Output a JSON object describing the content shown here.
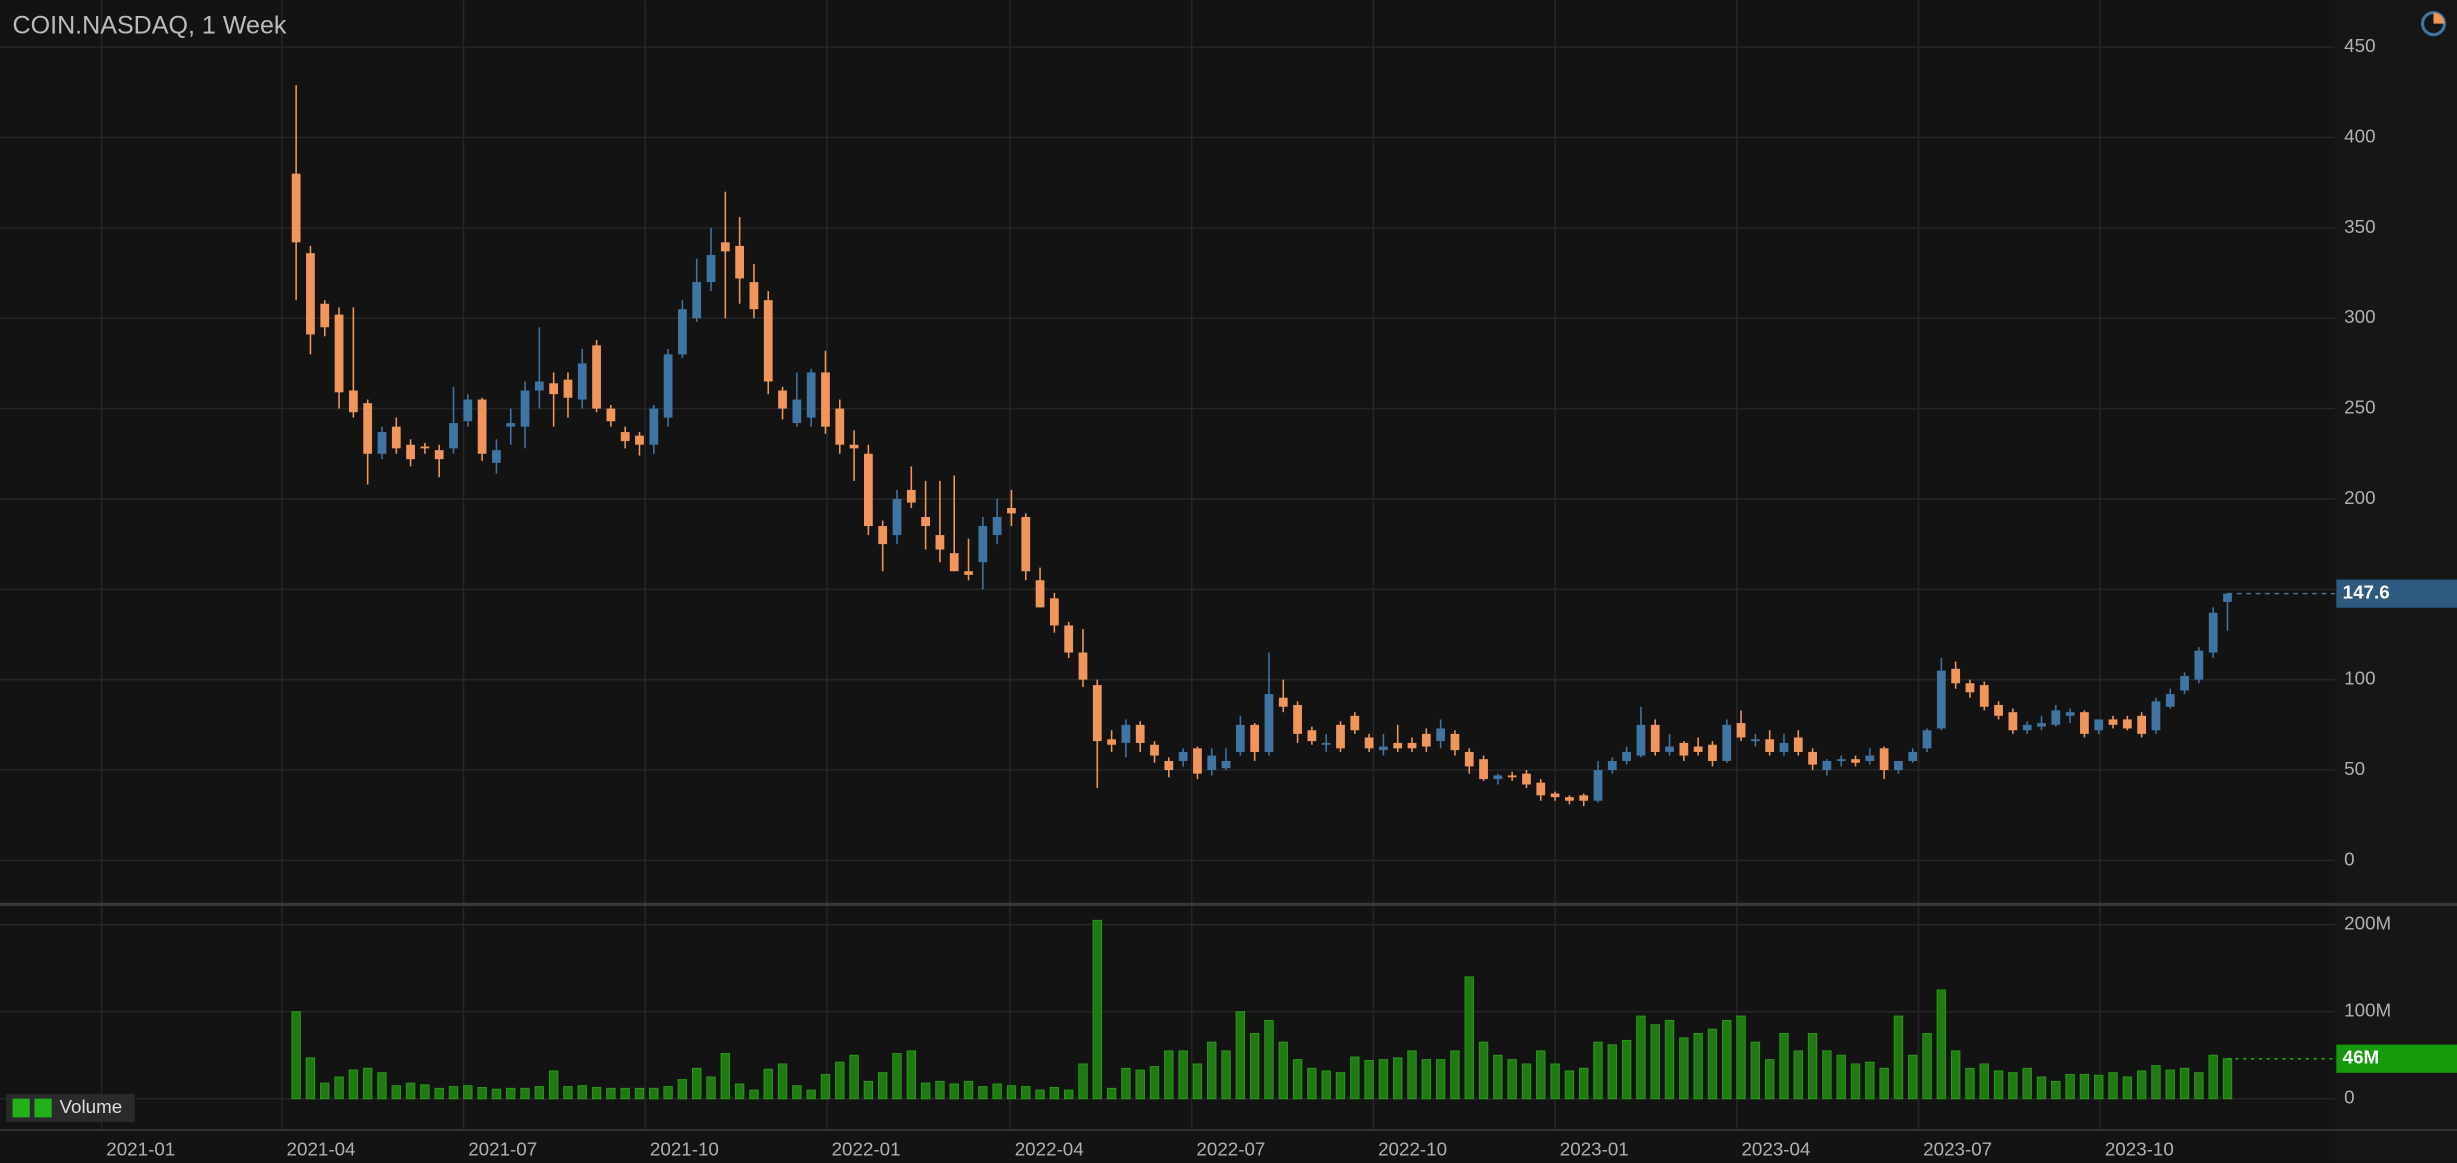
{
  "chart_data": [
    {
      "type": "candlestick",
      "title": "COIN.NASDAQ, 1 Week",
      "up_color": "#3f74a3",
      "down_color": "#f0965a",
      "open": [
        380,
        336,
        308,
        302,
        260,
        253,
        225,
        240,
        230,
        229,
        227,
        228,
        243,
        255,
        220,
        240,
        240,
        260,
        264,
        266,
        255,
        285,
        250,
        237,
        235,
        230,
        245,
        280,
        300,
        320,
        342,
        340,
        320,
        310,
        260,
        242,
        245,
        270,
        250,
        230,
        225,
        185,
        180,
        205,
        190,
        180,
        170,
        160,
        165,
        180,
        195,
        190,
        155,
        145,
        130,
        115,
        97,
        67,
        65,
        75,
        64,
        55,
        55,
        62,
        50,
        51,
        60,
        75,
        60,
        90,
        86,
        72,
        64,
        75,
        80,
        68,
        61,
        65,
        65,
        70,
        66,
        70,
        60,
        56,
        45,
        47,
        48,
        43,
        37,
        35,
        36,
        33,
        50,
        55,
        58,
        75,
        60,
        65,
        63,
        64,
        55,
        76,
        66,
        67,
        60,
        68,
        60,
        50,
        55,
        56,
        55,
        62,
        50,
        55,
        62,
        73,
        106,
        98,
        97,
        86,
        82,
        72,
        74,
        75,
        80,
        82,
        72,
        78,
        78,
        80,
        72,
        85,
        94,
        100,
        115,
        143
      ],
      "high": [
        429,
        340,
        310,
        306,
        306,
        255,
        240,
        245,
        233,
        231,
        230,
        262,
        258,
        256,
        233,
        250,
        265,
        295,
        270,
        270,
        283,
        288,
        252,
        240,
        237,
        252,
        283,
        310,
        333,
        350,
        370,
        356,
        330,
        315,
        262,
        270,
        272,
        282,
        255,
        238,
        230,
        188,
        205,
        218,
        210,
        210,
        213,
        178,
        190,
        200,
        205,
        192,
        162,
        148,
        132,
        128,
        100,
        72,
        78,
        77,
        66,
        57,
        62,
        63,
        62,
        62,
        80,
        76,
        115,
        100,
        88,
        74,
        70,
        77,
        82,
        70,
        70,
        75,
        68,
        73,
        78,
        72,
        62,
        58,
        48,
        49,
        50,
        45,
        38,
        36,
        37,
        55,
        57,
        63,
        85,
        78,
        70,
        66,
        68,
        66,
        78,
        83,
        70,
        72,
        70,
        72,
        62,
        56,
        58,
        58,
        62,
        63,
        55,
        62,
        73,
        112,
        110,
        100,
        99,
        88,
        84,
        77,
        80,
        86,
        84,
        83,
        78,
        80,
        80,
        82,
        90,
        95,
        104,
        118,
        140,
        148
      ],
      "low": [
        310,
        280,
        290,
        250,
        245,
        208,
        222,
        225,
        218,
        225,
        212,
        225,
        240,
        221,
        214,
        230,
        228,
        250,
        240,
        245,
        250,
        248,
        240,
        228,
        224,
        225,
        240,
        278,
        298,
        315,
        300,
        308,
        300,
        258,
        244,
        240,
        240,
        236,
        225,
        210,
        180,
        160,
        175,
        195,
        172,
        165,
        160,
        155,
        150,
        175,
        185,
        155,
        140,
        126,
        112,
        96,
        40,
        60,
        57,
        60,
        54,
        46,
        52,
        45,
        47,
        50,
        58,
        55,
        58,
        82,
        65,
        64,
        60,
        60,
        70,
        60,
        58,
        60,
        60,
        60,
        62,
        58,
        48,
        44,
        42,
        44,
        40,
        33,
        33,
        31,
        30,
        32,
        48,
        53,
        57,
        58,
        58,
        55,
        58,
        52,
        54,
        66,
        63,
        58,
        58,
        58,
        50,
        47,
        52,
        52,
        53,
        45,
        48,
        54,
        60,
        72,
        95,
        90,
        83,
        78,
        70,
        70,
        72,
        74,
        76,
        68,
        70,
        73,
        72,
        68,
        70,
        84,
        92,
        98,
        112,
        127
      ],
      "close": [
        342,
        291,
        295,
        259,
        248,
        225,
        237,
        228,
        222,
        228,
        222,
        242,
        255,
        225,
        227,
        242,
        260,
        265,
        258,
        256,
        275,
        250,
        243,
        232,
        230,
        250,
        280,
        305,
        320,
        335,
        337,
        322,
        305,
        265,
        250,
        255,
        270,
        240,
        230,
        228,
        185,
        175,
        200,
        198,
        185,
        172,
        160,
        158,
        185,
        190,
        192,
        160,
        140,
        130,
        115,
        100,
        66,
        64,
        75,
        65,
        58,
        50,
        60,
        48,
        58,
        55,
        75,
        60,
        92,
        85,
        70,
        66,
        65,
        62,
        72,
        62,
        63,
        62,
        62,
        63,
        73,
        61,
        52,
        45,
        47,
        46,
        42,
        36,
        35,
        33,
        33,
        50,
        55,
        60,
        75,
        60,
        63,
        58,
        60,
        55,
        75,
        68,
        67,
        60,
        65,
        60,
        53,
        55,
        56,
        54,
        58,
        50,
        55,
        60,
        72,
        105,
        98,
        93,
        85,
        80,
        72,
        75,
        76,
        83,
        82,
        70,
        78,
        75,
        73,
        70,
        88,
        92,
        102,
        116,
        137,
        147.6
      ],
      "xlim": [
        -20.7,
        142.5
      ],
      "xticks": [
        {
          "value": -13.6,
          "label": "2021-01"
        },
        {
          "value": -1.0,
          "label": "2021-04"
        },
        {
          "value": 11.7,
          "label": "2021-07"
        },
        {
          "value": 24.4,
          "label": "2021-10"
        },
        {
          "value": 37.1,
          "label": "2022-01"
        },
        {
          "value": 49.9,
          "label": "2022-04"
        },
        {
          "value": 62.6,
          "label": "2022-07"
        },
        {
          "value": 75.3,
          "label": "2022-10"
        },
        {
          "value": 88.0,
          "label": "2023-01"
        },
        {
          "value": 100.7,
          "label": "2023-04"
        },
        {
          "value": 113.4,
          "label": "2023-07"
        },
        {
          "value": 126.1,
          "label": "2023-10"
        }
      ],
      "ylim": [
        -24.3,
        476
      ],
      "yticks": [
        0,
        50,
        100,
        150,
        200,
        250,
        300,
        350,
        400,
        450
      ],
      "grid": true
    },
    {
      "type": "bar",
      "last_value_label": "46M",
      "series": [
        {
          "name": "Volume",
          "color": "#1f7a12",
          "values": [
            100,
            47,
            18,
            25,
            33,
            35,
            30,
            15,
            18,
            16,
            12,
            14,
            15,
            13,
            11,
            12,
            12,
            14,
            32,
            14,
            15,
            13,
            12,
            12,
            12,
            12,
            14,
            22,
            35,
            25,
            52,
            17,
            10,
            34,
            40,
            15,
            10,
            28,
            42,
            50,
            20,
            30,
            52,
            55,
            18,
            20,
            17,
            20,
            14,
            17,
            15,
            14,
            10,
            13,
            10,
            40,
            205,
            12,
            35,
            33,
            37,
            55,
            55,
            40,
            65,
            55,
            100,
            75,
            90,
            65,
            45,
            35,
            32,
            30,
            48,
            44,
            45,
            47,
            55,
            45,
            45,
            55,
            140,
            65,
            50,
            45,
            40,
            55,
            40,
            32,
            35,
            65,
            62,
            67,
            95,
            85,
            90,
            70,
            75,
            80,
            90,
            95,
            65,
            45,
            75,
            55,
            75,
            55,
            50,
            40,
            42,
            35,
            95,
            50,
            75,
            125,
            55,
            35,
            40,
            32,
            30,
            35,
            25,
            20,
            28,
            28,
            27,
            30,
            25,
            32,
            38,
            33,
            35,
            30,
            50,
            46
          ]
        }
      ],
      "ylim": [
        -34,
        221.6
      ],
      "yticks": [
        0,
        {
          "value": 100,
          "label": "100M"
        },
        {
          "value": 200,
          "label": "200M"
        }
      ]
    }
  ]
}
